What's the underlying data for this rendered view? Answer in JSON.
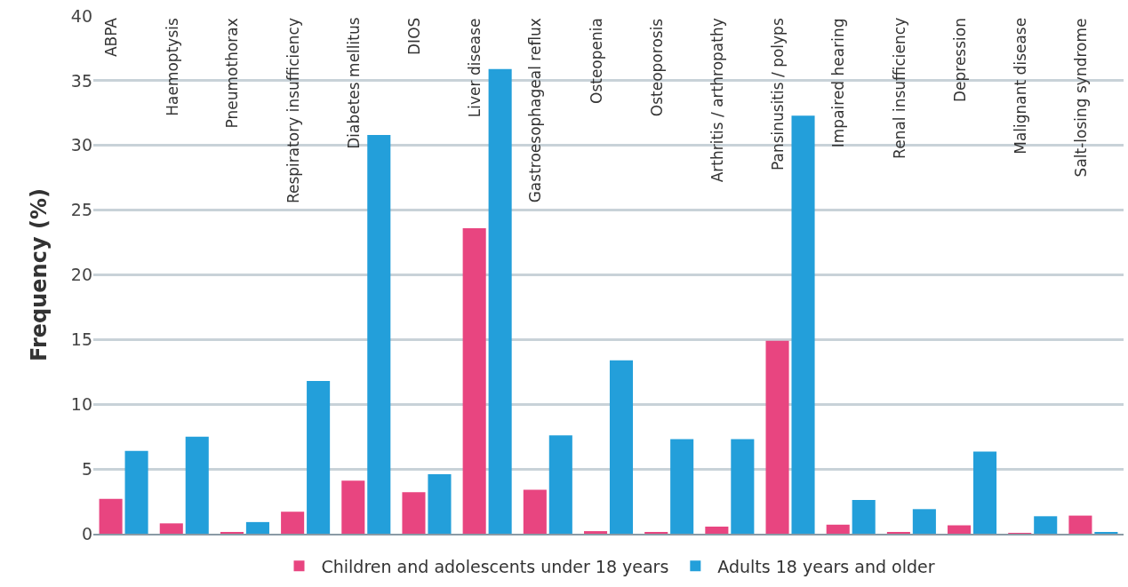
{
  "chart_data": {
    "type": "bar",
    "ylabel": "Frequency (%)",
    "categories": [
      "ABPA",
      "Haemoptysis",
      "Pneumothorax",
      "Respiratory insufficiency",
      "Diabetes mellitus",
      "DIOS",
      "Liver disease",
      "Gastroesophageal reflux",
      "Osteopenia",
      "Osteoporosis",
      "Arthritis / arthropathy",
      "Pansinusitis / polyps",
      "Impaired hearing",
      "Renal insufficiency",
      "Depression",
      "Malignant disease",
      "Salt-losing syndrome"
    ],
    "series": [
      {
        "name": "Children and adolescents under 18 years",
        "color": "#e84580",
        "values": [
          2.7,
          0.8,
          0.1,
          1.7,
          4.1,
          3.2,
          23.6,
          3.4,
          0.2,
          0.1,
          0.55,
          14.9,
          0.7,
          0.1,
          0.65,
          0.05,
          1.4
        ]
      },
      {
        "name": "Adults 18 years and older",
        "color": "#239fda",
        "values": [
          6.4,
          7.5,
          0.9,
          11.8,
          30.8,
          4.6,
          35.9,
          7.6,
          13.4,
          7.3,
          7.3,
          32.3,
          2.6,
          1.9,
          6.35,
          1.35,
          0.1
        ]
      }
    ],
    "ylim": [
      0,
      40
    ],
    "yticks": [
      0,
      5,
      10,
      15,
      20,
      25,
      30,
      35,
      40
    ],
    "grid": "y",
    "legend": "bottom"
  }
}
